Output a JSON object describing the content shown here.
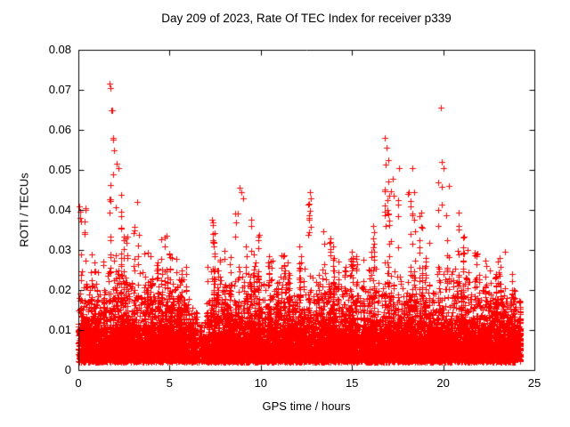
{
  "chart_data": {
    "type": "scatter",
    "title": "Day 209 of 2023, Rate Of TEC Index for receiver p339",
    "xlabel": "GPS time / hours",
    "ylabel": "ROTI / TECUs",
    "xlim": [
      0,
      25
    ],
    "ylim": [
      0,
      0.08
    ],
    "x_data_max": 24.2,
    "grid": false,
    "legend": "none",
    "marker": "plus",
    "marker_color": "#ff0000",
    "xticks": [
      {
        "v": 0,
        "label": "0"
      },
      {
        "v": 5,
        "label": "5"
      },
      {
        "v": 10,
        "label": "10"
      },
      {
        "v": 15,
        "label": "15"
      },
      {
        "v": 20,
        "label": "20"
      },
      {
        "v": 25,
        "label": "25"
      }
    ],
    "yticks": [
      {
        "v": 0,
        "label": "0"
      },
      {
        "v": 0.01,
        "label": "0.01"
      },
      {
        "v": 0.02,
        "label": "0.02"
      },
      {
        "v": 0.03,
        "label": "0.03"
      },
      {
        "v": 0.04,
        "label": "0.04"
      },
      {
        "v": 0.05,
        "label": "0.05"
      },
      {
        "v": 0.06,
        "label": "0.06"
      },
      {
        "v": 0.07,
        "label": "0.07"
      },
      {
        "v": 0.08,
        "label": "0.08"
      }
    ],
    "scatter": {
      "bins_format": [
        "x_center_hours",
        "y_max_roti",
        "density_0_to_1"
      ],
      "bin_width_hours": 0.5,
      "base_points_per_bin": 240,
      "dense_band": {
        "y_min": 0.002,
        "y_typical_max": 0.026,
        "exp_mean": 0.0052
      },
      "bins": [
        [
          0.25,
          0.041,
          1
        ],
        [
          0.75,
          0.03,
          1
        ],
        [
          1.25,
          0.028,
          1
        ],
        [
          1.75,
          0.05,
          1
        ],
        [
          2.25,
          0.045,
          1
        ],
        [
          2.75,
          0.035,
          1
        ],
        [
          3.25,
          0.036,
          1
        ],
        [
          3.75,
          0.03,
          1
        ],
        [
          4.25,
          0.027,
          1
        ],
        [
          4.75,
          0.034,
          1
        ],
        [
          5.25,
          0.03,
          1
        ],
        [
          5.75,
          0.026,
          1
        ],
        [
          6.25,
          0.02,
          0.8
        ],
        [
          6.75,
          0.012,
          0.35
        ],
        [
          7.25,
          0.038,
          0.9
        ],
        [
          7.75,
          0.028,
          1
        ],
        [
          8.25,
          0.03,
          1
        ],
        [
          8.75,
          0.044,
          1
        ],
        [
          9.25,
          0.042,
          1
        ],
        [
          9.75,
          0.034,
          1
        ],
        [
          10.25,
          0.03,
          1
        ],
        [
          10.75,
          0.028,
          1
        ],
        [
          11.25,
          0.031,
          1
        ],
        [
          11.75,
          0.029,
          1
        ],
        [
          12.25,
          0.033,
          1
        ],
        [
          12.75,
          0.044,
          1
        ],
        [
          13.25,
          0.035,
          1
        ],
        [
          13.75,
          0.033,
          1
        ],
        [
          14.25,
          0.03,
          1
        ],
        [
          14.75,
          0.028,
          1
        ],
        [
          15.25,
          0.031,
          1
        ],
        [
          15.75,
          0.03,
          1
        ],
        [
          16.25,
          0.038,
          1
        ],
        [
          16.75,
          0.052,
          1
        ],
        [
          17.25,
          0.048,
          1
        ],
        [
          17.75,
          0.05,
          1
        ],
        [
          18.25,
          0.048,
          1
        ],
        [
          18.75,
          0.04,
          1
        ],
        [
          19.25,
          0.033,
          1
        ],
        [
          19.75,
          0.05,
          1
        ],
        [
          20.25,
          0.046,
          1
        ],
        [
          20.75,
          0.04,
          1
        ],
        [
          21.25,
          0.034,
          1
        ],
        [
          21.75,
          0.032,
          1
        ],
        [
          22.25,
          0.028,
          1
        ],
        [
          22.75,
          0.025,
          1
        ],
        [
          23.25,
          0.029,
          1
        ],
        [
          23.75,
          0.026,
          1
        ],
        [
          24.1,
          0.018,
          0.4
        ]
      ],
      "outliers": [
        [
          0.05,
          0.041
        ],
        [
          0.08,
          0.0395
        ],
        [
          0.12,
          0.038
        ],
        [
          1.72,
          0.0715
        ],
        [
          1.78,
          0.0705
        ],
        [
          1.8,
          0.065
        ],
        [
          1.85,
          0.0648
        ],
        [
          1.88,
          0.058
        ],
        [
          1.9,
          0.0575
        ],
        [
          1.95,
          0.055
        ],
        [
          2.1,
          0.0515
        ],
        [
          2.18,
          0.0505
        ],
        [
          3.22,
          0.042
        ],
        [
          7.3,
          0.0375
        ],
        [
          8.85,
          0.0455
        ],
        [
          8.95,
          0.0445
        ],
        [
          9.05,
          0.043
        ],
        [
          12.7,
          0.0445
        ],
        [
          12.75,
          0.043
        ],
        [
          16.8,
          0.058
        ],
        [
          16.9,
          0.0555
        ],
        [
          17.0,
          0.0525
        ],
        [
          17.6,
          0.0505
        ],
        [
          18.3,
          0.0505
        ],
        [
          19.85,
          0.0655
        ],
        [
          19.9,
          0.052
        ],
        [
          20.0,
          0.0505
        ],
        [
          20.3,
          0.046
        ],
        [
          23.4,
          0.0295
        ]
      ]
    }
  }
}
